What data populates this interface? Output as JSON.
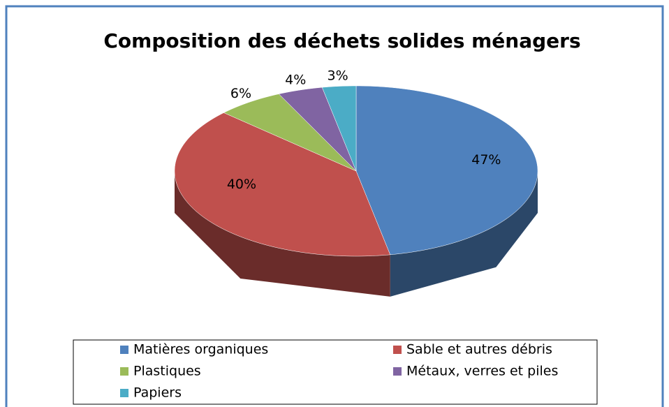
{
  "chart_data": {
    "type": "pie",
    "title": "Composition des déchets solides ménagers",
    "categories": [
      "Matières organiques",
      "Sable et autres débris",
      "Plastiques",
      "Métaux, verres et piles",
      "Papiers"
    ],
    "values": [
      47,
      40,
      6,
      4,
      3
    ],
    "value_labels": [
      "47%",
      "40%",
      "6%",
      "4%",
      "3%"
    ],
    "colors": [
      "#4f81bd",
      "#c0504d",
      "#9bbb59",
      "#8064a2",
      "#4bacc6"
    ],
    "legend": "bottom"
  }
}
